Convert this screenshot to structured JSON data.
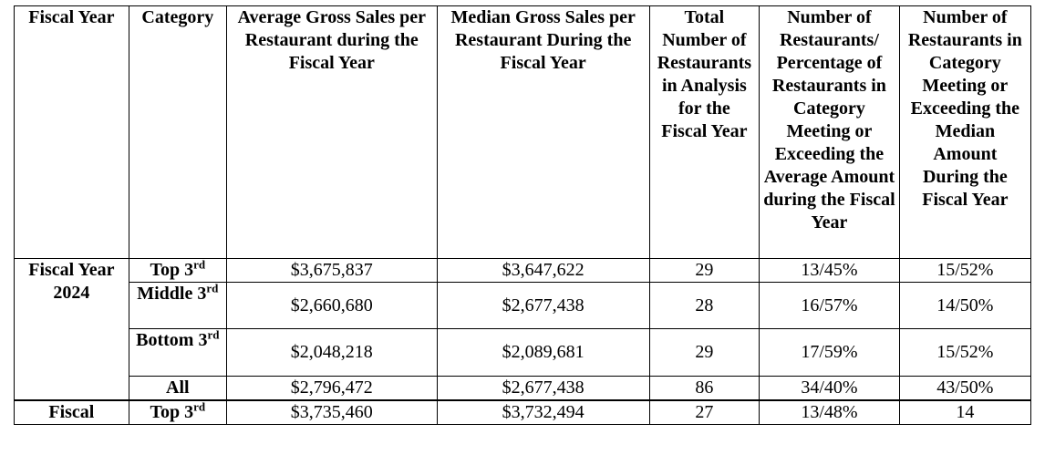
{
  "headers": {
    "fiscal_year": "Fiscal Year",
    "category": "Category",
    "average_gross_sales": "Average Gross Sales per Restaurant during the Fiscal Year",
    "median_gross_sales": "Median Gross Sales per Restaurant During the Fiscal Year",
    "total_restaurants": "Total Number of Restaurants in Analysis for the Fiscal Year",
    "meeting_average": "Number of Restaurants/ Percentage of Restaurants in Category Meeting or Exceeding the Average Amount during the Fiscal Year",
    "meeting_median": "Number of Restaurants in Category Meeting or Exceeding the Median Amount During the Fiscal Year"
  },
  "groups": [
    {
      "fiscal_year": "Fiscal Year 2024",
      "rows": [
        {
          "category": "Top 3",
          "sup": "rd",
          "average": "$3,675,837",
          "median": "$3,647,622",
          "total": "29",
          "meet_avg": "13/45%",
          "meet_median": "15/52%"
        },
        {
          "category": "Middle 3",
          "sup": "rd",
          "average": "$2,660,680",
          "median": "$2,677,438",
          "total": "28",
          "meet_avg": "16/57%",
          "meet_median": "14/50%"
        },
        {
          "category": "Bottom 3",
          "sup": "rd",
          "average": "$2,048,218",
          "median": "$2,089,681",
          "total": "29",
          "meet_avg": "17/59%",
          "meet_median": "15/52%"
        },
        {
          "category": "All",
          "sup": "",
          "average": "$2,796,472",
          "median": "$2,677,438",
          "total": "86",
          "meet_avg": "34/40%",
          "meet_median": "43/50%"
        }
      ]
    },
    {
      "fiscal_year": "Fiscal",
      "rows": [
        {
          "category": "Top 3",
          "sup": "rd",
          "average": "$3,735,460",
          "median": "$3,732,494",
          "total": "27",
          "meet_avg": "13/48%",
          "meet_median": "14"
        }
      ]
    }
  ]
}
